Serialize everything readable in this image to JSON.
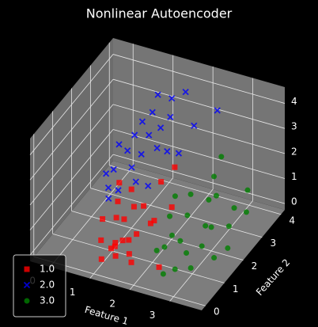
{
  "chart_data": {
    "type": "scatter3d",
    "title": "Nonlinear Autoencoder",
    "xlabel": "Feature 1",
    "ylabel": "Feature 2",
    "xlim": [
      -0.5,
      3.8
    ],
    "ylim": [
      -0.2,
      4.2
    ],
    "zlim": [
      -0.25,
      4.65
    ],
    "xticks": [
      0,
      1,
      2,
      3
    ],
    "yticks": [
      0,
      1,
      2,
      3,
      4
    ],
    "zticks": [
      0,
      1,
      2,
      3,
      4
    ],
    "grid": true,
    "legend": "lower left",
    "series": [
      {
        "name": "1.0",
        "color": "#ff0000",
        "marker": "s",
        "x": [
          1.2,
          1.5,
          1.0,
          1.8,
          1.3,
          0.9,
          1.6,
          2.0,
          1.1,
          1.4,
          1.7,
          0.7,
          1.9,
          1.2,
          1.5,
          2.2,
          1.0,
          1.3,
          0.8,
          1.6,
          2.4,
          1.1,
          1.8,
          1.4,
          0.6
        ],
        "y": [
          0.5,
          0.8,
          1.2,
          0.3,
          1.5,
          0.6,
          1.0,
          0.9,
          0.2,
          1.8,
          0.4,
          1.1,
          1.3,
          0.7,
          0.1,
          1.6,
          2.0,
          0.9,
          1.7,
          2.3,
          0.5,
          1.4,
          2.6,
          0.3,
          2.2
        ],
        "z": [
          0.4,
          0.6,
          0.9,
          0.3,
          1.2,
          0.5,
          0.7,
          1.4,
          0.2,
          1.0,
          0.5,
          0.8,
          1.1,
          0.3,
          0.6,
          1.5,
          1.3,
          0.4,
          1.0,
          1.6,
          0.2,
          0.7,
          2.0,
          0.9,
          1.2
        ]
      },
      {
        "name": "2.0",
        "color": "#0000ff",
        "marker": "x",
        "x": [
          0.6,
          0.9,
          1.2,
          0.8,
          1.5,
          0.7,
          1.1,
          1.8,
          1.0,
          1.3,
          0.5,
          1.6,
          0.9,
          1.4,
          2.0,
          1.2,
          0.8,
          1.7,
          1.1,
          2.3,
          0.6,
          1.5,
          1.0,
          1.9,
          1.3
        ],
        "y": [
          1.5,
          2.0,
          2.5,
          1.2,
          3.0,
          2.8,
          1.8,
          2.2,
          3.4,
          1.6,
          2.4,
          3.6,
          1.0,
          2.7,
          3.2,
          2.1,
          3.0,
          1.4,
          2.9,
          3.8,
          1.9,
          2.3,
          1.3,
          2.6,
          3.5
        ],
        "z": [
          2.2,
          2.8,
          3.1,
          2.0,
          3.5,
          2.6,
          2.4,
          3.0,
          3.8,
          2.1,
          2.5,
          4.0,
          1.8,
          3.3,
          3.2,
          2.7,
          3.0,
          2.3,
          3.6,
          3.4,
          2.0,
          2.9,
          1.9,
          2.6,
          3.7
        ]
      },
      {
        "name": "3.0",
        "color": "#008000",
        "marker": "o",
        "x": [
          2.2,
          2.6,
          3.0,
          2.4,
          3.3,
          2.8,
          2.1,
          3.5,
          2.7,
          2.3,
          3.1,
          2.5,
          2.9,
          3.4,
          2.2,
          2.6,
          3.2,
          2.0,
          2.8,
          3.0,
          2.4,
          3.6,
          2.7,
          2.3,
          3.1
        ],
        "y": [
          0.8,
          1.2,
          1.5,
          2.0,
          2.3,
          0.5,
          1.7,
          2.8,
          2.5,
          1.0,
          3.0,
          3.2,
          1.9,
          1.3,
          2.6,
          0.3,
          3.5,
          2.2,
          1.1,
          2.0,
          3.8,
          1.6,
          2.9,
          1.4,
          0.7
        ],
        "z": [
          0.5,
          0.7,
          0.4,
          0.9,
          0.6,
          0.3,
          1.0,
          0.8,
          1.2,
          0.5,
          0.6,
          1.4,
          0.8,
          0.3,
          1.1,
          0.2,
          0.9,
          1.3,
          0.4,
          0.7,
          1.6,
          0.5,
          1.0,
          0.6,
          0.3
        ]
      }
    ]
  }
}
